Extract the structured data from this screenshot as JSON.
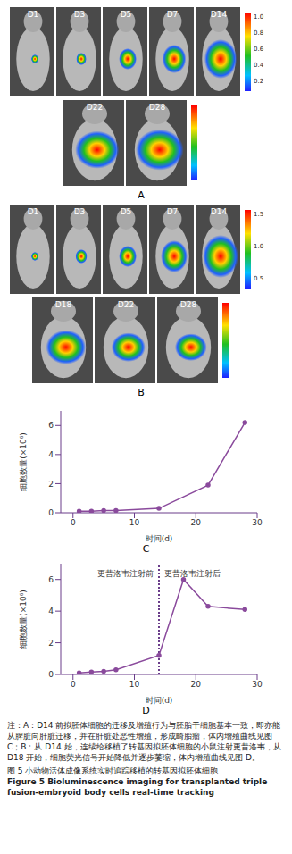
{
  "panels": [
    {
      "label": "A",
      "rows": [
        {
          "days": [
            "D1",
            "D3",
            "D5",
            "D7",
            "D14"
          ],
          "colorbar_ticks": [
            {
              "value": 1,
              "label": "1.0"
            },
            {
              "value": 0.8,
              "label": "0.8"
            },
            {
              "value": 0.6,
              "label": "0.6"
            },
            {
              "value": 0.4,
              "label": "0.4"
            },
            {
              "value": 0.2,
              "label": "0.2"
            }
          ]
        },
        {
          "days": [
            "D22",
            "D28"
          ],
          "colorbar_ticks": []
        }
      ]
    },
    {
      "label": "B",
      "rows": [
        {
          "days": [
            "D1",
            "D3",
            "D5",
            "D7",
            "D14"
          ],
          "colorbar_ticks": [
            {
              "value": 1.5,
              "label": "1.5"
            },
            {
              "value": 1,
              "label": "1.0"
            },
            {
              "value": 0.5,
              "label": "0.5"
            }
          ]
        },
        {
          "days": [
            "D18",
            "D22",
            "D28"
          ],
          "colorbar_ticks": []
        }
      ]
    }
  ],
  "chart_data": [
    {
      "type": "line",
      "label": "C",
      "x_label": "时间(d)",
      "y_label": "细胞数量(×10⁶)",
      "x": [
        1,
        3,
        5,
        7,
        14,
        22,
        28
      ],
      "values": [
        0.1,
        0.1,
        0.15,
        0.15,
        0.3,
        1.9,
        6.2
      ],
      "color": "#8a4a9c",
      "marker": "circle",
      "xlim": [
        -2,
        30
      ],
      "xticks": [
        0,
        10,
        20,
        30
      ],
      "ylim": [
        0,
        7
      ],
      "yticks": [
        0,
        2,
        4,
        6
      ],
      "grid": false
    },
    {
      "type": "line",
      "label": "D",
      "x_label": "时间(d)",
      "y_label": "细胞数量(×10⁶)",
      "x": [
        1,
        3,
        5,
        7,
        14,
        18,
        22,
        28
      ],
      "values": [
        0.1,
        0.15,
        0.2,
        0.3,
        1.2,
        6,
        4.3,
        4.1
      ],
      "color": "#8a4a9c",
      "marker": "circle",
      "xlim": [
        -2,
        30
      ],
      "xticks": [
        0,
        10,
        20,
        30
      ],
      "ylim": [
        0,
        7
      ],
      "yticks": [
        0,
        2,
        4,
        6
      ],
      "grid": false,
      "reference_x": 14,
      "annotations": [
        "更昔洛韦注射前",
        "更昔洛韦注射后"
      ]
    }
  ],
  "caption": {
    "note": "注：A：D14 前拟胚体细胞的迁移及增殖行为与胚胎干细胞基本一致，即亦能从脾脏向肝脏迁移，并在肝脏处恶性增殖，形成畸胎瘤，体内增殖曲线见图 C；B：从 D14 始，连续给移植了转基因拟胚体细胞的小鼠注射更昔洛韦，从 D18 开始，细胞荧光信号开始降低并逐步萎缩，体内增殖曲线见图 D。",
    "title_cn": "图 5   小动物活体成像系统实时追踪移植的转基因拟胚体细胞",
    "title_en": "Figure 5   Bioluminescence imaging for transplanted triple fusion-embryoid body cells real-time tracking"
  }
}
